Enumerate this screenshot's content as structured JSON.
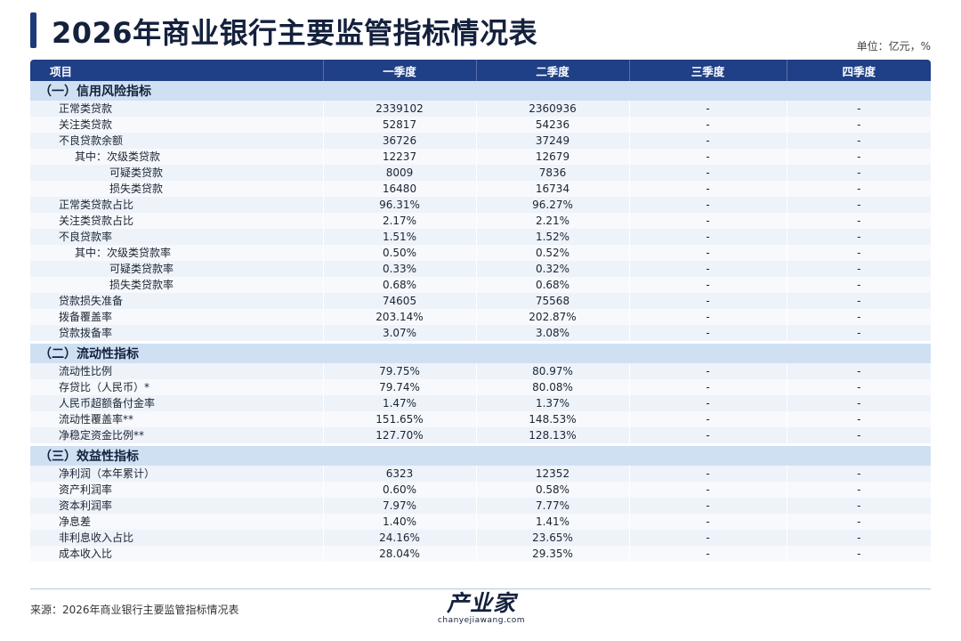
{
  "header": {
    "title": "2026年商业银行主要监管指标情况表",
    "unit": "单位：亿元，%"
  },
  "table": {
    "columns": [
      "项目",
      "一季度",
      "二季度",
      "三季度",
      "四季度"
    ],
    "sections": [
      {
        "title": "（一）信用风险指标",
        "rows": [
          {
            "label": "正常类贷款",
            "indent": 0,
            "values": [
              "2339102",
              "2360936",
              "-",
              "-"
            ]
          },
          {
            "label": "关注类贷款",
            "indent": 0,
            "values": [
              "52817",
              "54236",
              "-",
              "-"
            ]
          },
          {
            "label": "不良贷款余额",
            "indent": 0,
            "values": [
              "36726",
              "37249",
              "-",
              "-"
            ]
          },
          {
            "label": "其中：次级类贷款",
            "indent": 1,
            "values": [
              "12237",
              "12679",
              "-",
              "-"
            ]
          },
          {
            "label": "可疑类贷款",
            "indent": 2,
            "values": [
              "8009",
              "7836",
              "-",
              "-"
            ]
          },
          {
            "label": "损失类贷款",
            "indent": 2,
            "values": [
              "16480",
              "16734",
              "-",
              "-"
            ]
          },
          {
            "label": "正常类贷款占比",
            "indent": 0,
            "values": [
              "96.31%",
              "96.27%",
              "-",
              "-"
            ]
          },
          {
            "label": "关注类贷款占比",
            "indent": 0,
            "values": [
              "2.17%",
              "2.21%",
              "-",
              "-"
            ]
          },
          {
            "label": "不良贷款率",
            "indent": 0,
            "values": [
              "1.51%",
              "1.52%",
              "-",
              "-"
            ]
          },
          {
            "label": "其中：次级类贷款率",
            "indent": 1,
            "values": [
              "0.50%",
              "0.52%",
              "-",
              "-"
            ]
          },
          {
            "label": "可疑类贷款率",
            "indent": 2,
            "values": [
              "0.33%",
              "0.32%",
              "-",
              "-"
            ]
          },
          {
            "label": "损失类贷款率",
            "indent": 2,
            "values": [
              "0.68%",
              "0.68%",
              "-",
              "-"
            ]
          },
          {
            "label": "贷款损失准备",
            "indent": 0,
            "values": [
              "74605",
              "75568",
              "-",
              "-"
            ]
          },
          {
            "label": "拨备覆盖率",
            "indent": 0,
            "values": [
              "203.14%",
              "202.87%",
              "-",
              "-"
            ]
          },
          {
            "label": "贷款拨备率",
            "indent": 0,
            "values": [
              "3.07%",
              "3.08%",
              "-",
              "-"
            ]
          }
        ]
      },
      {
        "title": "（二）流动性指标",
        "rows": [
          {
            "label": "流动性比例",
            "indent": 0,
            "values": [
              "79.75%",
              "80.97%",
              "-",
              "-"
            ]
          },
          {
            "label": "存贷比（人民币）*",
            "indent": 0,
            "values": [
              "79.74%",
              "80.08%",
              "-",
              "-"
            ]
          },
          {
            "label": "人民币超额备付金率",
            "indent": 0,
            "values": [
              "1.47%",
              "1.37%",
              "-",
              "-"
            ]
          },
          {
            "label": "流动性覆盖率**",
            "indent": 0,
            "values": [
              "151.65%",
              "148.53%",
              "-",
              "-"
            ]
          },
          {
            "label": "净稳定资金比例**",
            "indent": 0,
            "values": [
              "127.70%",
              "128.13%",
              "-",
              "-"
            ]
          }
        ]
      },
      {
        "title": "（三）效益性指标",
        "rows": [
          {
            "label": "净利润（本年累计）",
            "indent": 0,
            "values": [
              "6323",
              "12352",
              "-",
              "-"
            ]
          },
          {
            "label": "资产利润率",
            "indent": 0,
            "values": [
              "0.60%",
              "0.58%",
              "-",
              "-"
            ]
          },
          {
            "label": "资本利润率",
            "indent": 0,
            "values": [
              "7.97%",
              "7.77%",
              "-",
              "-"
            ]
          },
          {
            "label": "净息差",
            "indent": 0,
            "values": [
              "1.40%",
              "1.41%",
              "-",
              "-"
            ]
          },
          {
            "label": "非利息收入占比",
            "indent": 0,
            "values": [
              "24.16%",
              "23.65%",
              "-",
              "-"
            ]
          },
          {
            "label": "成本收入比",
            "indent": 0,
            "values": [
              "28.04%",
              "29.35%",
              "-",
              "-"
            ]
          }
        ]
      }
    ]
  },
  "footer": {
    "source": "来源：2026年商业银行主要监管指标情况表",
    "logo_text": "产业家",
    "logo_url_text": "chanyejiawang.com"
  }
}
